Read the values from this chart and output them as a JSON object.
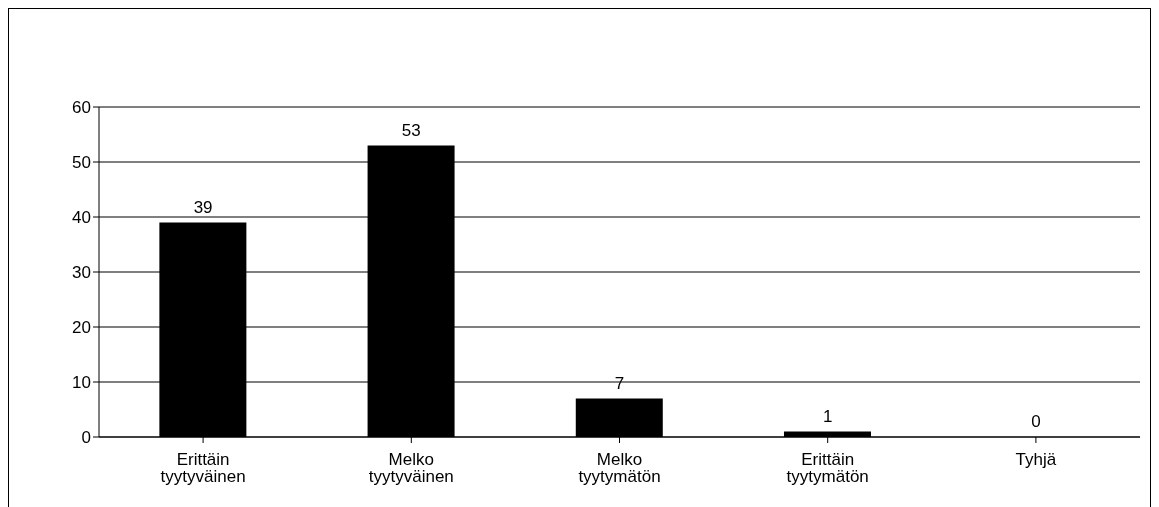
{
  "chart_data": {
    "type": "bar",
    "categories": [
      "Erittäin tyytyväinen",
      "Melko tyytyväinen",
      "Melko tyytymätön",
      "Erittäin tyytymätön",
      "Tyhjä"
    ],
    "values": [
      39,
      53,
      7,
      1,
      0
    ],
    "color": "#000000",
    "ylim": [
      0,
      60
    ],
    "yticks": [
      0,
      10,
      20,
      30,
      40,
      50,
      60
    ],
    "grid": "y",
    "data_labels": true
  }
}
